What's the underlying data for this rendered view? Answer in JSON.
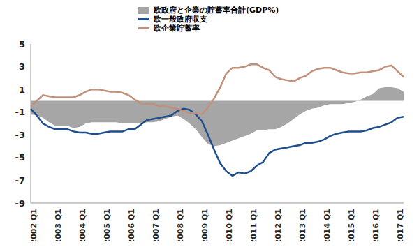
{
  "chart_data": {
    "type": "line",
    "categories": [
      "2002 Q1",
      null,
      null,
      null,
      "2003 Q1",
      null,
      null,
      null,
      "2004 Q1",
      null,
      null,
      null,
      "2005 Q1",
      null,
      null,
      null,
      "2006 Q1",
      null,
      null,
      null,
      "2007 Q1",
      null,
      null,
      null,
      "2008 Q1",
      null,
      null,
      null,
      "2009 Q1",
      null,
      null,
      null,
      "2010 Q1",
      null,
      null,
      null,
      "2011 Q1",
      null,
      null,
      null,
      "2012 Q1",
      null,
      null,
      null,
      "2013 Q1",
      null,
      null,
      null,
      "2014 Q1",
      null,
      null,
      null,
      "2015 Q1",
      null,
      null,
      null,
      "2016 Q1",
      null,
      null,
      null,
      "2017 Q1",
      null
    ],
    "series": [
      {
        "name": "欧政府と企業の貯蓄率合計(GDP%)",
        "type": "area",
        "color": "#a6a6a6",
        "values": [
          -1.2,
          -1.3,
          -1.5,
          -1.9,
          -2.2,
          -2.2,
          -2.2,
          -2.4,
          -2.3,
          -2.0,
          -1.9,
          -1.9,
          -1.9,
          -1.9,
          -1.9,
          -2.0,
          -2.0,
          -2.0,
          -2.0,
          -1.9,
          -1.9,
          -1.8,
          -1.6,
          -1.4,
          -1.3,
          -1.6,
          -2.0,
          -2.5,
          -3.2,
          -3.8,
          -4.0,
          -3.9,
          -3.7,
          -3.5,
          -3.3,
          -3.1,
          -2.9,
          -2.6,
          -2.6,
          -2.5,
          -2.5,
          -2.3,
          -2.0,
          -1.6,
          -1.2,
          -0.9,
          -0.7,
          -0.6,
          -0.4,
          -0.3,
          -0.3,
          -0.3,
          -0.2,
          -0.1,
          0.1,
          0.4,
          0.6,
          1.1,
          1.2,
          1.2,
          1.1,
          0.8
        ]
      },
      {
        "name": "欧一般政府収支",
        "type": "line",
        "color": "#1f4e8c",
        "values": [
          -0.7,
          -1.3,
          -2.0,
          -2.3,
          -2.5,
          -2.5,
          -2.5,
          -2.7,
          -2.8,
          -2.8,
          -2.9,
          -2.9,
          -2.8,
          -2.7,
          -2.7,
          -2.7,
          -2.5,
          -2.5,
          -2.1,
          -1.7,
          -1.6,
          -1.5,
          -1.4,
          -1.3,
          -0.9,
          -0.7,
          -0.8,
          -1.2,
          -1.8,
          -3.0,
          -4.3,
          -5.5,
          -6.2,
          -6.6,
          -6.3,
          -6.4,
          -6.2,
          -5.7,
          -5.4,
          -4.6,
          -4.3,
          -4.2,
          -4.1,
          -4.0,
          -3.9,
          -3.7,
          -3.7,
          -3.6,
          -3.4,
          -3.1,
          -2.9,
          -2.8,
          -2.7,
          -2.7,
          -2.7,
          -2.6,
          -2.4,
          -2.3,
          -2.1,
          -1.9,
          -1.5,
          -1.4
        ]
      },
      {
        "name": "欧企業貯蓄率",
        "type": "line",
        "color": "#c0907a",
        "values": [
          -0.5,
          0.0,
          0.5,
          0.4,
          0.3,
          0.3,
          0.3,
          0.3,
          0.5,
          0.8,
          1.0,
          1.0,
          0.9,
          0.8,
          0.8,
          0.7,
          0.5,
          0.1,
          -0.2,
          -0.3,
          -0.3,
          -0.5,
          -0.5,
          -0.6,
          -0.7,
          -0.9,
          -1.1,
          -1.1,
          -1.2,
          -0.6,
          0.2,
          1.2,
          2.4,
          2.9,
          2.9,
          3.0,
          3.2,
          3.2,
          2.9,
          2.7,
          2.1,
          1.9,
          1.8,
          1.7,
          2.0,
          2.2,
          2.6,
          2.8,
          2.9,
          2.9,
          2.7,
          2.5,
          2.4,
          2.4,
          2.5,
          2.5,
          2.6,
          2.7,
          3.0,
          3.1,
          2.6,
          2.1
        ]
      }
    ],
    "ylim": [
      -9,
      5
    ],
    "yticks": [
      -9,
      -7,
      -5,
      -3,
      -1,
      1,
      3,
      5
    ],
    "grid": false,
    "legend": "top-left"
  }
}
